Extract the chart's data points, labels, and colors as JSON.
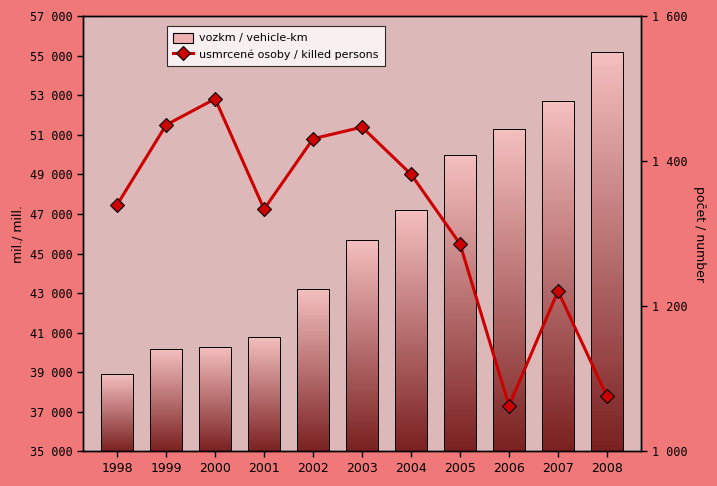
{
  "years": [
    1998,
    1999,
    2000,
    2001,
    2002,
    2003,
    2004,
    2005,
    2006,
    2007,
    2008
  ],
  "vozkm": [
    38900,
    40200,
    40300,
    40800,
    43200,
    45700,
    47200,
    50000,
    51300,
    52700,
    55200
  ],
  "killed": [
    1340,
    1450,
    1486,
    1334,
    1431,
    1447,
    1382,
    1286,
    1063,
    1221,
    1076
  ],
  "bar_color_top": "#f5c0c0",
  "bar_color_bottom": "#7a2020",
  "line_color": "#cc0000",
  "background_outer": "#f07878",
  "background_inner": "#ddb8b8",
  "ylabel_left": "mil./ mill.",
  "ylabel_right": "počet / number",
  "legend_label1": "vozkm / vehicle-km",
  "legend_label2": "usmrcené osoby / killed persons",
  "ylim_left": [
    35000,
    57000
  ],
  "ylim_right": [
    1000,
    1600
  ],
  "yticks_left": [
    35000,
    37000,
    39000,
    41000,
    43000,
    45000,
    47000,
    49000,
    51000,
    53000,
    55000,
    57000
  ],
  "yticks_right": [
    1000,
    1200,
    1400,
    1600
  ],
  "bar_width": 0.65
}
